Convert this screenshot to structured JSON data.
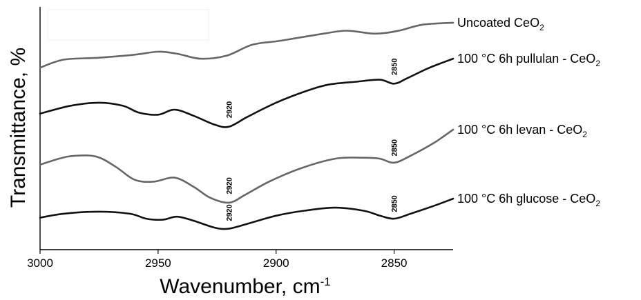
{
  "chart_data": {
    "type": "line",
    "xlabel": "Wavenumber, cm",
    "xlabel_sup": "-1",
    "ylabel": "Transmittance, %",
    "xlim": [
      3000,
      2825
    ],
    "x_reversed": true,
    "ylim": [
      0,
      100
    ],
    "y_ticks_shown": false,
    "x_ticks": [
      3000,
      2950,
      2900,
      2850
    ],
    "grid": false,
    "series": [
      {
        "name": "Uncoated CeO",
        "name_sub": "2",
        "color": "#666666",
        "points": [
          [
            3000,
            76.5
          ],
          [
            2990,
            80.5
          ],
          [
            2975,
            81.5
          ],
          [
            2960,
            83
          ],
          [
            2950,
            84.5
          ],
          [
            2942,
            83.5
          ],
          [
            2932,
            81
          ],
          [
            2921,
            82.5
          ],
          [
            2910,
            88
          ],
          [
            2898,
            90
          ],
          [
            2880,
            93.5
          ],
          [
            2870,
            95
          ],
          [
            2858,
            93.5
          ],
          [
            2848,
            95
          ],
          [
            2838,
            98
          ],
          [
            2825,
            99
          ]
        ]
      },
      {
        "name": "100 °C 6h pullulan - CeO",
        "name_sub": "2",
        "color": "#111111",
        "points": [
          [
            3000,
            53.5
          ],
          [
            2987,
            57.5
          ],
          [
            2975,
            59
          ],
          [
            2965,
            57.5
          ],
          [
            2958,
            54
          ],
          [
            2950,
            53
          ],
          [
            2943,
            55.5
          ],
          [
            2935,
            52.5
          ],
          [
            2926,
            48
          ],
          [
            2920,
            47
          ],
          [
            2912,
            52
          ],
          [
            2900,
            59
          ],
          [
            2888,
            64.5
          ],
          [
            2878,
            68
          ],
          [
            2866,
            69.5
          ],
          [
            2856,
            70.5
          ],
          [
            2850,
            68.5
          ],
          [
            2844,
            71.5
          ],
          [
            2835,
            76.5
          ],
          [
            2825,
            81
          ]
        ]
      },
      {
        "name": "100 °C 6h levan - CeO",
        "name_sub": "2",
        "color": "#666666",
        "points": [
          [
            3000,
            28
          ],
          [
            2992,
            31
          ],
          [
            2985,
            32.5
          ],
          [
            2976,
            32
          ],
          [
            2968,
            27
          ],
          [
            2960,
            20.5
          ],
          [
            2952,
            19.5
          ],
          [
            2943,
            21.5
          ],
          [
            2935,
            17
          ],
          [
            2928,
            11.5
          ],
          [
            2920,
            9
          ],
          [
            2913,
            13
          ],
          [
            2903,
            19.5
          ],
          [
            2890,
            26
          ],
          [
            2875,
            31
          ],
          [
            2863,
            31.5
          ],
          [
            2856,
            31
          ],
          [
            2850,
            29
          ],
          [
            2843,
            32.5
          ],
          [
            2833,
            39
          ],
          [
            2825,
            45.5
          ]
        ]
      },
      {
        "name": "100 °C 6h glucose - CeO",
        "name_sub": "2",
        "color": "#111111",
        "points": [
          [
            3000,
            1.5
          ],
          [
            2990,
            3.5
          ],
          [
            2975,
            4.5
          ],
          [
            2962,
            3.5
          ],
          [
            2955,
            1
          ],
          [
            2948,
            0.5
          ],
          [
            2942,
            2
          ],
          [
            2935,
            0
          ],
          [
            2926,
            -3.5
          ],
          [
            2920,
            -4
          ],
          [
            2912,
            -1.5
          ],
          [
            2900,
            2.5
          ],
          [
            2888,
            5
          ],
          [
            2875,
            6.5
          ],
          [
            2863,
            5
          ],
          [
            2856,
            2.5
          ],
          [
            2850,
            1
          ],
          [
            2843,
            3.5
          ],
          [
            2833,
            7.5
          ],
          [
            2825,
            11
          ]
        ]
      }
    ],
    "annotations": [
      {
        "text": "2920",
        "x": 2920,
        "y": 55.5
      },
      {
        "text": "2850",
        "x": 2850,
        "y": 77
      },
      {
        "text": "2920",
        "x": 2920,
        "y": 17.5
      },
      {
        "text": "2850",
        "x": 2850,
        "y": 36.5
      },
      {
        "text": "2920",
        "x": 2920,
        "y": 4
      },
      {
        "text": "2850",
        "x": 2850,
        "y": 8.5
      }
    ]
  }
}
